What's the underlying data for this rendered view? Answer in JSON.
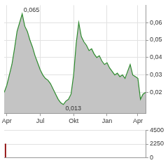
{
  "chart_data": [
    {
      "type": "line",
      "categories": [
        null,
        "Apr",
        null,
        null,
        null,
        null,
        null,
        null,
        null,
        null,
        null,
        null,
        null,
        null,
        "Jul",
        null,
        null,
        null,
        null,
        null,
        null,
        null,
        null,
        null,
        null,
        null,
        null,
        "Okt",
        null,
        null,
        null,
        null,
        null,
        null,
        null,
        null,
        null,
        null,
        null,
        null,
        "Jan",
        null,
        null,
        null,
        null,
        null,
        null,
        null,
        null,
        null,
        null,
        null,
        "Apr",
        null,
        null,
        null
      ],
      "values": [
        0.02,
        0.024,
        0.03,
        0.036,
        0.045,
        0.055,
        0.06,
        0.065,
        0.058,
        0.055,
        0.05,
        0.046,
        0.041,
        0.037,
        0.033,
        0.03,
        0.028,
        0.027,
        0.025,
        0.022,
        0.019,
        0.016,
        0.014,
        0.013,
        0.015,
        0.016,
        0.019,
        0.03,
        0.048,
        0.06,
        0.052,
        0.049,
        0.047,
        0.044,
        0.045,
        0.042,
        0.04,
        0.041,
        0.038,
        0.036,
        0.037,
        0.034,
        0.032,
        0.03,
        0.031,
        0.029,
        0.03,
        0.028,
        0.032,
        0.036,
        0.03,
        0.029,
        0.028,
        0.016,
        0.019,
        0.02
      ],
      "color": "#2e8b2e",
      "ylim": [
        0.008,
        0.07
      ],
      "yticks": [
        {
          "value": 0.02,
          "label": "0,02"
        },
        {
          "value": 0.03,
          "label": "0,03"
        },
        {
          "value": 0.04,
          "label": "0,04"
        },
        {
          "value": 0.05,
          "label": "0,05"
        },
        {
          "value": 0.06,
          "label": "0,06"
        }
      ],
      "grid": true,
      "annotations": [
        {
          "text": "0,065",
          "index": 7,
          "value": 0.065
        },
        {
          "text": "0,013",
          "index": 23,
          "value": 0.013
        }
      ]
    },
    {
      "type": "bar",
      "categories": [
        null,
        "Apr",
        null,
        null,
        null,
        null,
        null,
        null,
        null,
        null,
        null,
        null,
        null,
        null,
        "Jul",
        null,
        null,
        null,
        null,
        null,
        null,
        null,
        null,
        null,
        null,
        null,
        null,
        "Okt",
        null,
        null,
        null,
        null,
        null,
        null,
        null,
        null,
        null,
        null,
        null,
        null,
        "Jan",
        null,
        null,
        null,
        null,
        null,
        null,
        null,
        null,
        null,
        null,
        null,
        "Apr",
        null,
        null,
        null
      ],
      "values": [
        2300,
        0,
        0,
        0,
        0,
        0,
        0,
        0,
        0,
        0,
        0,
        0,
        0,
        0,
        0,
        0,
        0,
        0,
        0,
        0,
        0,
        0,
        0,
        0,
        0,
        0,
        0,
        0,
        0,
        0,
        0,
        0,
        0,
        0,
        0,
        0,
        0,
        0,
        0,
        0,
        0,
        0,
        0,
        0,
        0,
        0,
        0,
        0,
        0,
        0,
        0,
        0,
        0,
        0,
        0,
        0
      ],
      "color": "#8b0000",
      "ylim": [
        0,
        4500
      ],
      "yticks": [
        0,
        2250,
        4500
      ],
      "grid": true,
      "tick_labels": "y"
    }
  ]
}
